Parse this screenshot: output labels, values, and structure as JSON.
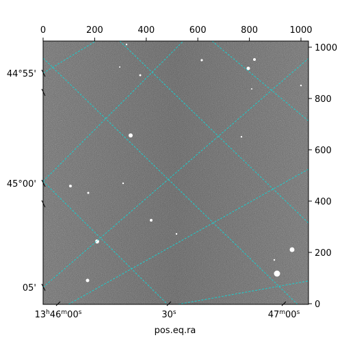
{
  "figure": {
    "xlabel": "pos.eq.ra",
    "grid_color": "#22c8c8",
    "top_ticks": [
      "0",
      "200",
      "400",
      "600",
      "800",
      "1000"
    ],
    "right_ticks": [
      "0",
      "200",
      "400",
      "600",
      "800",
      "1000"
    ],
    "left_ticks": [
      "44°55'",
      "45°00'",
      "05'"
    ],
    "bottom_ticks": [
      {
        "main": "13",
        "sup1": "h",
        "mid": "46",
        "sup2": "m",
        "tail": "00",
        "sup3": "s"
      },
      {
        "main": "",
        "sup1": "",
        "mid": "",
        "sup2": "",
        "tail": "30",
        "sup3": "s"
      },
      {
        "main": "",
        "sup1": "",
        "mid": "47",
        "sup2": "m",
        "tail": "00",
        "sup3": "s"
      }
    ]
  }
}
